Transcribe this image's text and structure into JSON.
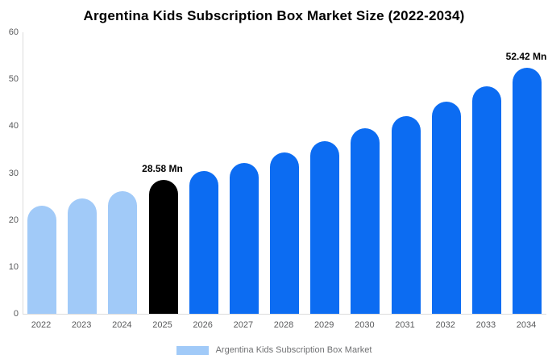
{
  "chart_data": {
    "type": "bar",
    "title": "Argentina Kids Subscription Box Market Size (2022-2034)",
    "categories": [
      "2022",
      "2023",
      "2024",
      "2025",
      "2026",
      "2027",
      "2028",
      "2029",
      "2030",
      "2031",
      "2032",
      "2033",
      "2034"
    ],
    "values": [
      23.1,
      24.6,
      26.1,
      28.58,
      30.4,
      32.1,
      34.4,
      36.8,
      39.6,
      42.2,
      45.2,
      48.4,
      52.42
    ],
    "unit": "Mn",
    "xlabel": "",
    "ylabel": "",
    "ylim": [
      0,
      60
    ],
    "y_ticks": [
      0,
      10,
      20,
      30,
      40,
      50,
      60
    ],
    "grid": false,
    "bar_colors": [
      "#a1caf8",
      "#a1caf8",
      "#a1caf8",
      "#000000",
      "#0c6cf2",
      "#0c6cf2",
      "#0c6cf2",
      "#0c6cf2",
      "#0c6cf2",
      "#0c6cf2",
      "#0c6cf2",
      "#0c6cf2",
      "#0c6cf2"
    ],
    "annotations": [
      {
        "category": "2025",
        "text": "28.58 Mn"
      },
      {
        "category": "2034",
        "text": "52.42 Mn"
      }
    ],
    "legend": {
      "position": "bottom",
      "label": "Argentina Kids Subscription Box Market",
      "swatch_color": "#a1caf8"
    },
    "colors": {
      "light_blue": "#a1caf8",
      "highlight_black": "#000000",
      "blue": "#0c6cf2",
      "axis_line": "#dcdcdc",
      "tick_text": "#58595b",
      "title_text": "#000000",
      "background": "#ffffff"
    }
  }
}
